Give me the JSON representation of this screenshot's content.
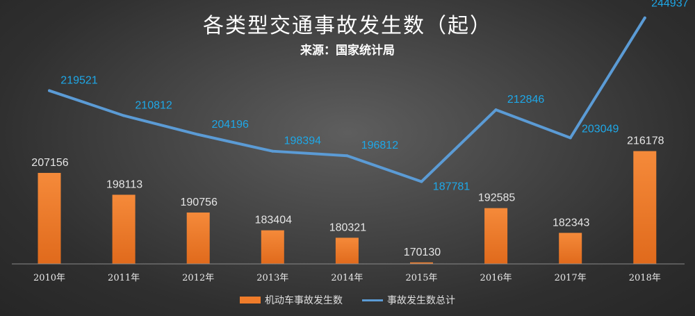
{
  "colors": {
    "bar": "#f07c2a",
    "bar_dark": "#d9611a",
    "line": "#5b9bd5",
    "line_label": "#1ea8e8"
  },
  "chart_data": {
    "type": "bar",
    "title": "各类型交通事故发生数（起）",
    "subtitle": "来源：国家统计局",
    "categories": [
      "2010年",
      "2011年",
      "2012年",
      "2013年",
      "2014年",
      "2015年",
      "2016年",
      "2017年",
      "2018年"
    ],
    "series": [
      {
        "name": "机动车事故发生数",
        "type": "bar",
        "values": [
          207156,
          198113,
          190756,
          183404,
          180321,
          170130,
          192585,
          182343,
          216178
        ]
      },
      {
        "name": "事故发生数总计",
        "type": "line",
        "values": [
          219521,
          210812,
          204196,
          198394,
          196812,
          187781,
          212846,
          203049,
          244937
        ]
      }
    ],
    "legend_position": "bottom",
    "grid": false
  }
}
